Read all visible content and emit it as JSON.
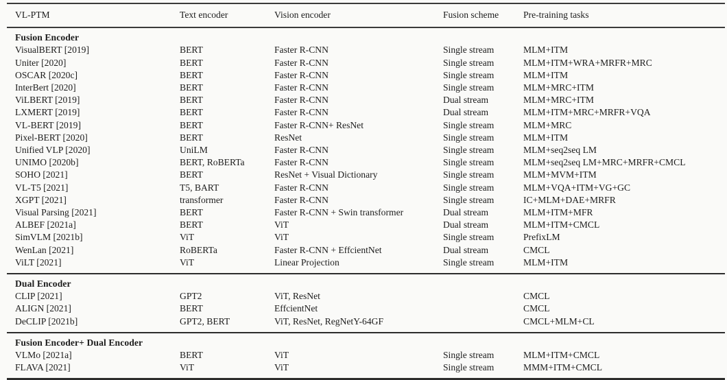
{
  "colors": {
    "background": "#fafaf8",
    "text": "#1c1c1c",
    "rule": "#2c2c2c"
  },
  "table": {
    "columns": [
      "VL-PTM",
      "Text encoder",
      "Vision encoder",
      "Fusion scheme",
      "Pre-training tasks"
    ],
    "sections": [
      {
        "title": "Fusion Encoder",
        "rows": [
          [
            "VisualBERT [2019]",
            "BERT",
            "Faster R-CNN",
            "Single stream",
            "MLM+ITM"
          ],
          [
            "Uniter [2020]",
            "BERT",
            "Faster R-CNN",
            "Single stream",
            "MLM+ITM+WRA+MRFR+MRC"
          ],
          [
            "OSCAR [2020c]",
            "BERT",
            "Faster R-CNN",
            "Single stream",
            "MLM+ITM"
          ],
          [
            "InterBert [2020]",
            "BERT",
            "Faster R-CNN",
            "Single stream",
            "MLM+MRC+ITM"
          ],
          [
            "ViLBERT [2019]",
            "BERT",
            "Faster R-CNN",
            "Dual stream",
            "MLM+MRC+ITM"
          ],
          [
            "LXMERT [2019]",
            "BERT",
            "Faster R-CNN",
            "Dual stream",
            "MLM+ITM+MRC+MRFR+VQA"
          ],
          [
            "VL-BERT [2019]",
            "BERT",
            "Faster R-CNN+ ResNet",
            "Single stream",
            "MLM+MRC"
          ],
          [
            "Pixel-BERT [2020]",
            "BERT",
            "ResNet",
            "Single stream",
            "MLM+ITM"
          ],
          [
            "Unified VLP [2020]",
            "UniLM",
            "Faster R-CNN",
            "Single stream",
            "MLM+seq2seq LM"
          ],
          [
            "UNIMO [2020b]",
            "BERT, RoBERTa",
            "Faster R-CNN",
            "Single stream",
            "MLM+seq2seq LM+MRC+MRFR+CMCL"
          ],
          [
            "SOHO [2021]",
            "BERT",
            "ResNet + Visual Dictionary",
            "Single stream",
            "MLM+MVM+ITM"
          ],
          [
            "VL-T5 [2021]",
            "T5, BART",
            "Faster R-CNN",
            "Single stream",
            "MLM+VQA+ITM+VG+GC"
          ],
          [
            "XGPT [2021]",
            "transformer",
            "Faster R-CNN",
            "Single stream",
            "IC+MLM+DAE+MRFR"
          ],
          [
            "Visual Parsing [2021]",
            "BERT",
            "Faster R-CNN + Swin transformer",
            "Dual stream",
            "MLM+ITM+MFR"
          ],
          [
            "ALBEF [2021a]",
            "BERT",
            "ViT",
            "Dual stream",
            "MLM+ITM+CMCL"
          ],
          [
            "SimVLM [2021b]",
            "ViT",
            "ViT",
            "Single stream",
            "PrefixLM"
          ],
          [
            "WenLan [2021]",
            "RoBERTa",
            "Faster R-CNN + EffcientNet",
            "Dual stream",
            "CMCL"
          ],
          [
            "ViLT [2021]",
            "ViT",
            "Linear Projection",
            "Single stream",
            "MLM+ITM"
          ]
        ]
      },
      {
        "title": "Dual Encoder",
        "rows": [
          [
            "CLIP [2021]",
            "GPT2",
            "ViT, ResNet",
            "",
            "CMCL"
          ],
          [
            "ALIGN [2021]",
            "BERT",
            "EffcientNet",
            "",
            "CMCL"
          ],
          [
            "DeCLIP [2021b]",
            "GPT2, BERT",
            "ViT, ResNet, RegNetY-64GF",
            "",
            "CMCL+MLM+CL"
          ]
        ]
      },
      {
        "title": "Fusion Encoder+ Dual Encoder",
        "rows": [
          [
            "VLMo [2021a]",
            "BERT",
            "ViT",
            "Single stream",
            "MLM+ITM+CMCL"
          ],
          [
            "FLAVA [2021]",
            "ViT",
            "ViT",
            "Single stream",
            "MMM+ITM+CMCL"
          ]
        ]
      }
    ]
  }
}
